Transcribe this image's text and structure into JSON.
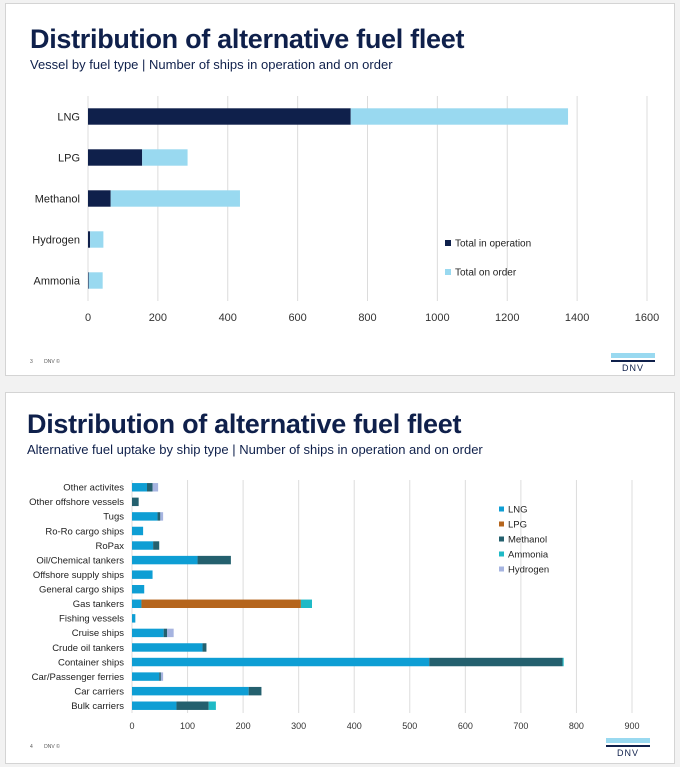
{
  "slides": [
    {
      "title": "Distribution of alternative fuel fleet",
      "subtitle": "Vessel by fuel type | Number of ships in operation and on order",
      "footer": {
        "page": "3",
        "brand": "DNV ©"
      },
      "logo": "DNV"
    },
    {
      "title": "Distribution of alternative fuel fleet",
      "subtitle": "Alternative fuel uptake by ship type | Number of ships in operation and on order",
      "footer": {
        "page": "4",
        "brand": "DNV ©"
      },
      "logo": "DNV"
    }
  ],
  "chart_data": [
    {
      "type": "bar",
      "orientation": "horizontal",
      "stacked": true,
      "categories": [
        "LNG",
        "LPG",
        "Methanol",
        "Hydrogen",
        "Ammonia"
      ],
      "series": [
        {
          "name": "Total in operation",
          "color": "#0f204b",
          "values": [
            752,
            155,
            65,
            6,
            2
          ]
        },
        {
          "name": "Total on order",
          "color": "#99d9f0",
          "values": [
            622,
            130,
            370,
            38,
            40
          ]
        }
      ],
      "xlim": [
        0,
        1600
      ],
      "xticks": [
        0,
        200,
        400,
        600,
        800,
        1000,
        1200,
        1400,
        1600
      ],
      "grid": true,
      "legend": "bottom-right"
    },
    {
      "type": "bar",
      "orientation": "horizontal",
      "stacked": true,
      "categories": [
        "Other activites",
        "Other offshore vessels",
        "Tugs",
        "Ro-Ro cargo ships",
        "RoPax",
        "Oil/Chemical tankers",
        "Offshore supply ships",
        "General cargo ships",
        "Gas tankers",
        "Fishing vessels",
        "Cruise ships",
        "Crude oil tankers",
        "Container ships",
        "Car/Passenger ferries",
        "Car carriers",
        "Bulk carriers"
      ],
      "series": [
        {
          "name": "LNG",
          "color": "#0e9ed4",
          "values": [
            27,
            0,
            46,
            20,
            38,
            118,
            37,
            22,
            17,
            6,
            57,
            127,
            535,
            49,
            210,
            80
          ]
        },
        {
          "name": "LPG",
          "color": "#b5651d",
          "values": [
            0,
            0,
            0,
            0,
            0,
            0,
            0,
            0,
            287,
            0,
            0,
            0,
            0,
            0,
            0,
            0
          ]
        },
        {
          "name": "Methanol",
          "color": "#24606e",
          "values": [
            10,
            12,
            5,
            0,
            11,
            60,
            0,
            0,
            0,
            0,
            6,
            7,
            240,
            3,
            23,
            58
          ]
        },
        {
          "name": "Ammonia",
          "color": "#1fbac6",
          "values": [
            0,
            0,
            0,
            0,
            0,
            0,
            0,
            0,
            20,
            0,
            0,
            0,
            2,
            0,
            0,
            13
          ]
        },
        {
          "name": "Hydrogen",
          "color": "#a6b4e0",
          "values": [
            10,
            0,
            5,
            0,
            0,
            0,
            0,
            0,
            0,
            0,
            12,
            0,
            0,
            4,
            0,
            0
          ]
        }
      ],
      "xlim": [
        0,
        900
      ],
      "xticks": [
        0,
        100,
        200,
        300,
        400,
        500,
        600,
        700,
        800,
        900
      ],
      "grid": true,
      "legend": "top-right"
    }
  ]
}
